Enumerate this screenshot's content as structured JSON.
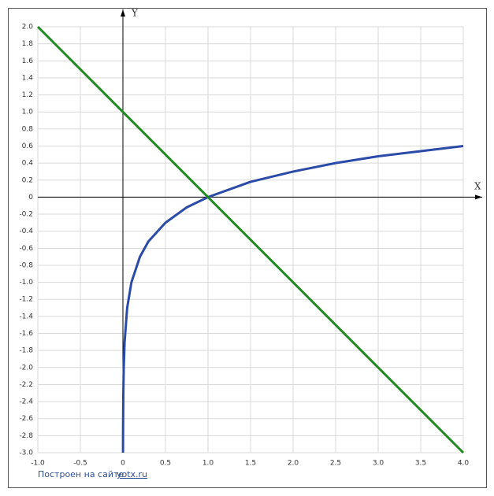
{
  "chart_data": {
    "type": "line",
    "x_label": "X",
    "y_label": "Y",
    "series": [
      {
        "color": "#2b4ba8",
        "x": [
          0.001,
          0.002,
          0.005,
          0.01,
          0.02,
          0.05,
          0.1,
          0.2,
          0.3,
          0.5,
          0.75,
          1,
          1.5,
          2,
          2.5,
          3,
          3.5,
          4
        ],
        "values": [
          -3,
          -2.7,
          -2.3,
          -2,
          -1.7,
          -1.3,
          -1,
          -0.7,
          -0.52,
          -0.3,
          -0.12,
          0,
          0.18,
          0.3,
          0.4,
          0.48,
          0.54,
          0.6
        ]
      },
      {
        "color": "#1f8a1f",
        "x": [
          -1,
          4
        ],
        "values": [
          2,
          -3
        ]
      }
    ],
    "xlim": [
      -1,
      4
    ],
    "ylim": [
      -3,
      2
    ],
    "xticks": [
      {
        "value": -1,
        "label": "-1.0"
      },
      -0.5,
      0,
      0.5,
      {
        "value": 1,
        "label": "1.0"
      },
      1.5,
      {
        "value": 2,
        "label": "2.0"
      },
      2.5,
      {
        "value": 3,
        "label": "3.0"
      },
      3.5,
      {
        "value": 4,
        "label": "4.0"
      }
    ],
    "yticks": [
      {
        "value": 2,
        "label": "2.0"
      },
      1.8,
      1.6,
      1.4,
      1.2,
      {
        "value": 1,
        "label": "1.0"
      },
      0.8,
      0.6,
      0.4,
      0.2,
      0,
      -0.2,
      -0.4,
      -0.6,
      -0.8,
      {
        "value": -1,
        "label": "-1.0"
      },
      -1.2,
      -1.4,
      -1.6,
      -1.8,
      {
        "value": -2,
        "label": "-2.0"
      },
      -2.2,
      -2.4,
      -2.6,
      -2.8,
      {
        "value": -3,
        "label": "-3.0"
      }
    ],
    "grid": true,
    "footer": {
      "text": "Построен на сайте",
      "link": "yotx.ru"
    }
  }
}
